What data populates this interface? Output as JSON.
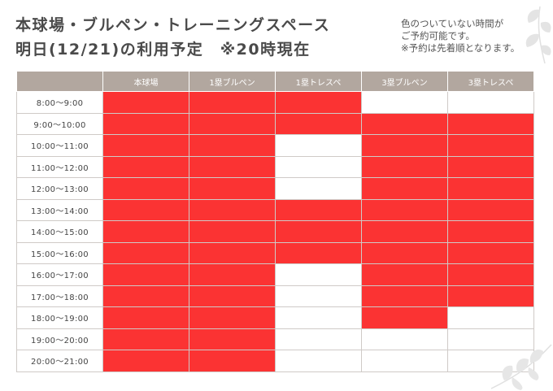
{
  "title": {
    "line1": "本球場・ブルペン・トレーニングスペース",
    "line2": "明日(12/21)の利用予定　※20時現在"
  },
  "notes": [
    "色のついていない時間が",
    "ご予約可能です。",
    "※予約は先着順となります。"
  ],
  "colors": {
    "booked": "#fb3333",
    "header": "#b2a79f"
  },
  "columns": [
    "本球場",
    "1塁ブルペン",
    "1塁トレスペ",
    "3塁ブルペン",
    "3塁トレスペ"
  ],
  "rows": [
    {
      "time": "8:00〜9:00",
      "booked": [
        true,
        true,
        true,
        false,
        false
      ]
    },
    {
      "time": "9:00〜10:00",
      "booked": [
        true,
        true,
        true,
        true,
        true
      ]
    },
    {
      "time": "10:00〜11:00",
      "booked": [
        true,
        true,
        false,
        true,
        true
      ]
    },
    {
      "time": "11:00〜12:00",
      "booked": [
        true,
        true,
        false,
        true,
        true
      ]
    },
    {
      "time": "12:00〜13:00",
      "booked": [
        true,
        true,
        false,
        true,
        true
      ]
    },
    {
      "time": "13:00〜14:00",
      "booked": [
        true,
        true,
        true,
        true,
        true
      ]
    },
    {
      "time": "14:00〜15:00",
      "booked": [
        true,
        true,
        true,
        true,
        true
      ]
    },
    {
      "time": "15:00〜16:00",
      "booked": [
        true,
        true,
        true,
        true,
        true
      ]
    },
    {
      "time": "16:00〜17:00",
      "booked": [
        true,
        true,
        false,
        true,
        true
      ]
    },
    {
      "time": "17:00〜18:00",
      "booked": [
        true,
        true,
        false,
        true,
        true
      ]
    },
    {
      "time": "18:00〜19:00",
      "booked": [
        true,
        true,
        false,
        true,
        false
      ]
    },
    {
      "time": "19:00〜20:00",
      "booked": [
        true,
        true,
        false,
        false,
        false
      ]
    },
    {
      "time": "20:00〜21:00",
      "booked": [
        true,
        true,
        false,
        false,
        false
      ]
    }
  ]
}
